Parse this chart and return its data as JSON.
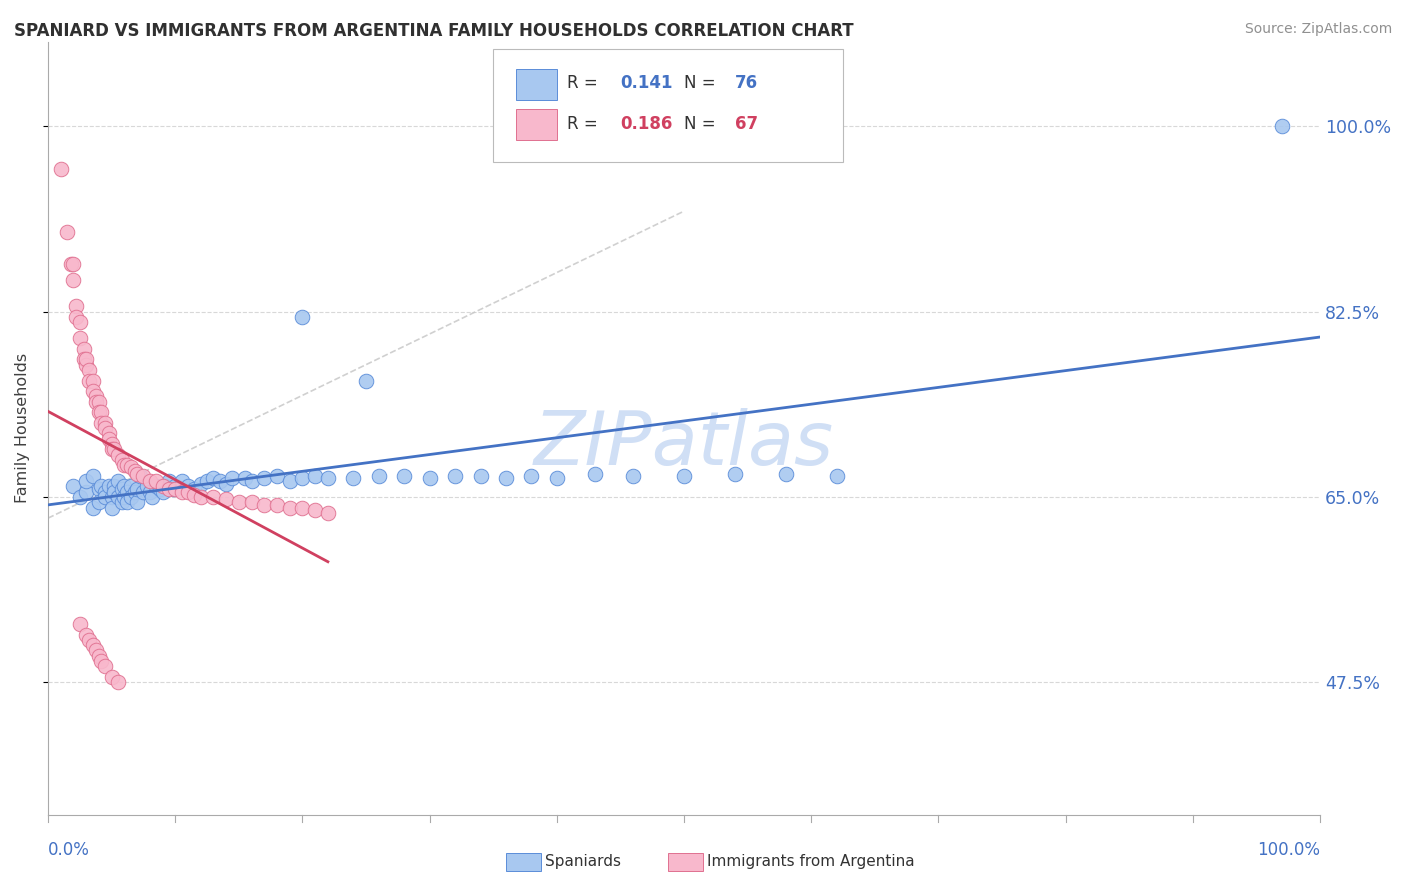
{
  "title": "SPANIARD VS IMMIGRANTS FROM ARGENTINA FAMILY HOUSEHOLDS CORRELATION CHART",
  "source": "Source: ZipAtlas.com",
  "ylabel": "Family Households",
  "legend_blue_r": "0.141",
  "legend_blue_n": "76",
  "legend_pink_r": "0.186",
  "legend_pink_n": "67",
  "blue_fill": "#a8c8f0",
  "blue_edge": "#5b8dd9",
  "pink_fill": "#f8b8cc",
  "pink_edge": "#e07090",
  "trend_blue": "#4472c4",
  "trend_pink": "#d04060",
  "dash_color": "#c8c8c8",
  "axis_label_color": "#4472c4",
  "grid_color": "#d8d8d8",
  "title_color": "#303030",
  "source_color": "#909090",
  "watermark_color": "#d0dff5",
  "blue_x": [
    0.02,
    0.025,
    0.03,
    0.03,
    0.035,
    0.035,
    0.04,
    0.04,
    0.042,
    0.045,
    0.045,
    0.048,
    0.05,
    0.05,
    0.052,
    0.052,
    0.055,
    0.055,
    0.058,
    0.058,
    0.06,
    0.06,
    0.062,
    0.062,
    0.065,
    0.065,
    0.068,
    0.07,
    0.07,
    0.072,
    0.075,
    0.078,
    0.08,
    0.082,
    0.085,
    0.088,
    0.09,
    0.092,
    0.095,
    0.098,
    0.1,
    0.105,
    0.11,
    0.115,
    0.12,
    0.125,
    0.13,
    0.135,
    0.14,
    0.145,
    0.155,
    0.16,
    0.17,
    0.18,
    0.19,
    0.2,
    0.21,
    0.22,
    0.24,
    0.26,
    0.28,
    0.3,
    0.32,
    0.34,
    0.36,
    0.38,
    0.4,
    0.43,
    0.46,
    0.5,
    0.54,
    0.58,
    0.62,
    0.97,
    0.2,
    0.25
  ],
  "blue_y": [
    0.66,
    0.65,
    0.655,
    0.665,
    0.64,
    0.67,
    0.658,
    0.645,
    0.66,
    0.655,
    0.65,
    0.66,
    0.65,
    0.64,
    0.66,
    0.655,
    0.65,
    0.665,
    0.645,
    0.658,
    0.65,
    0.66,
    0.655,
    0.645,
    0.66,
    0.65,
    0.655,
    0.645,
    0.658,
    0.67,
    0.655,
    0.66,
    0.655,
    0.65,
    0.66,
    0.658,
    0.655,
    0.66,
    0.665,
    0.658,
    0.66,
    0.665,
    0.66,
    0.658,
    0.662,
    0.665,
    0.668,
    0.665,
    0.662,
    0.668,
    0.668,
    0.665,
    0.668,
    0.67,
    0.665,
    0.668,
    0.67,
    0.668,
    0.668,
    0.67,
    0.67,
    0.668,
    0.67,
    0.67,
    0.668,
    0.67,
    0.668,
    0.672,
    0.67,
    0.67,
    0.672,
    0.672,
    0.67,
    1.0,
    0.82,
    0.76
  ],
  "pink_x": [
    0.01,
    0.015,
    0.018,
    0.02,
    0.02,
    0.022,
    0.022,
    0.025,
    0.025,
    0.028,
    0.028,
    0.03,
    0.03,
    0.032,
    0.032,
    0.035,
    0.035,
    0.038,
    0.038,
    0.04,
    0.04,
    0.042,
    0.042,
    0.045,
    0.045,
    0.048,
    0.048,
    0.05,
    0.05,
    0.052,
    0.055,
    0.058,
    0.06,
    0.062,
    0.065,
    0.068,
    0.07,
    0.075,
    0.08,
    0.085,
    0.09,
    0.095,
    0.1,
    0.105,
    0.11,
    0.115,
    0.12,
    0.13,
    0.14,
    0.15,
    0.16,
    0.17,
    0.18,
    0.19,
    0.2,
    0.21,
    0.22,
    0.025,
    0.03,
    0.032,
    0.035,
    0.038,
    0.04,
    0.042,
    0.045,
    0.05,
    0.055
  ],
  "pink_y": [
    0.96,
    0.9,
    0.87,
    0.87,
    0.855,
    0.83,
    0.82,
    0.815,
    0.8,
    0.79,
    0.78,
    0.775,
    0.78,
    0.77,
    0.76,
    0.76,
    0.75,
    0.745,
    0.74,
    0.74,
    0.73,
    0.73,
    0.72,
    0.72,
    0.715,
    0.71,
    0.705,
    0.7,
    0.695,
    0.695,
    0.69,
    0.685,
    0.68,
    0.68,
    0.678,
    0.675,
    0.672,
    0.67,
    0.665,
    0.665,
    0.66,
    0.658,
    0.658,
    0.655,
    0.655,
    0.652,
    0.65,
    0.65,
    0.648,
    0.645,
    0.645,
    0.642,
    0.642,
    0.64,
    0.64,
    0.638,
    0.635,
    0.53,
    0.52,
    0.515,
    0.51,
    0.505,
    0.5,
    0.495,
    0.49,
    0.48,
    0.475
  ]
}
